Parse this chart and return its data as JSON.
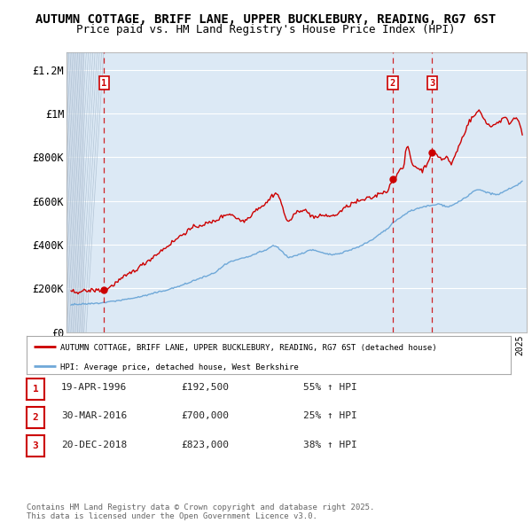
{
  "title": "AUTUMN COTTAGE, BRIFF LANE, UPPER BUCKLEBURY, READING, RG7 6ST",
  "subtitle": "Price paid vs. HM Land Registry's House Price Index (HPI)",
  "ylabel_ticks": [
    "£0",
    "£200K",
    "£400K",
    "£600K",
    "£800K",
    "£1M",
    "£1.2M"
  ],
  "ytick_values": [
    0,
    200000,
    400000,
    600000,
    800000,
    1000000,
    1200000
  ],
  "ylim": [
    0,
    1280000
  ],
  "xlim_start": 1993.7,
  "xlim_end": 2025.5,
  "sale_dates": [
    1996.29,
    2016.24,
    2018.97
  ],
  "sale_prices": [
    192500,
    700000,
    823000
  ],
  "sale_labels": [
    "1",
    "2",
    "3"
  ],
  "legend_label_red": "AUTUMN COTTAGE, BRIFF LANE, UPPER BUCKLEBURY, READING, RG7 6ST (detached house)",
  "legend_label_blue": "HPI: Average price, detached house, West Berkshire",
  "table_rows": [
    {
      "num": "1",
      "date": "19-APR-1996",
      "price": "£192,500",
      "pct": "55% ↑ HPI"
    },
    {
      "num": "2",
      "date": "30-MAR-2016",
      "price": "£700,000",
      "pct": "25% ↑ HPI"
    },
    {
      "num": "3",
      "date": "20-DEC-2018",
      "price": "£823,000",
      "pct": "38% ↑ HPI"
    }
  ],
  "footer": "Contains HM Land Registry data © Crown copyright and database right 2025.\nThis data is licensed under the Open Government Licence v3.0.",
  "bg_color": "#ffffff",
  "plot_bg_color": "#dce9f5",
  "red_color": "#cc0000",
  "blue_color": "#6fa8d8",
  "grid_color": "#ffffff",
  "title_fontsize": 10,
  "subtitle_fontsize": 9
}
